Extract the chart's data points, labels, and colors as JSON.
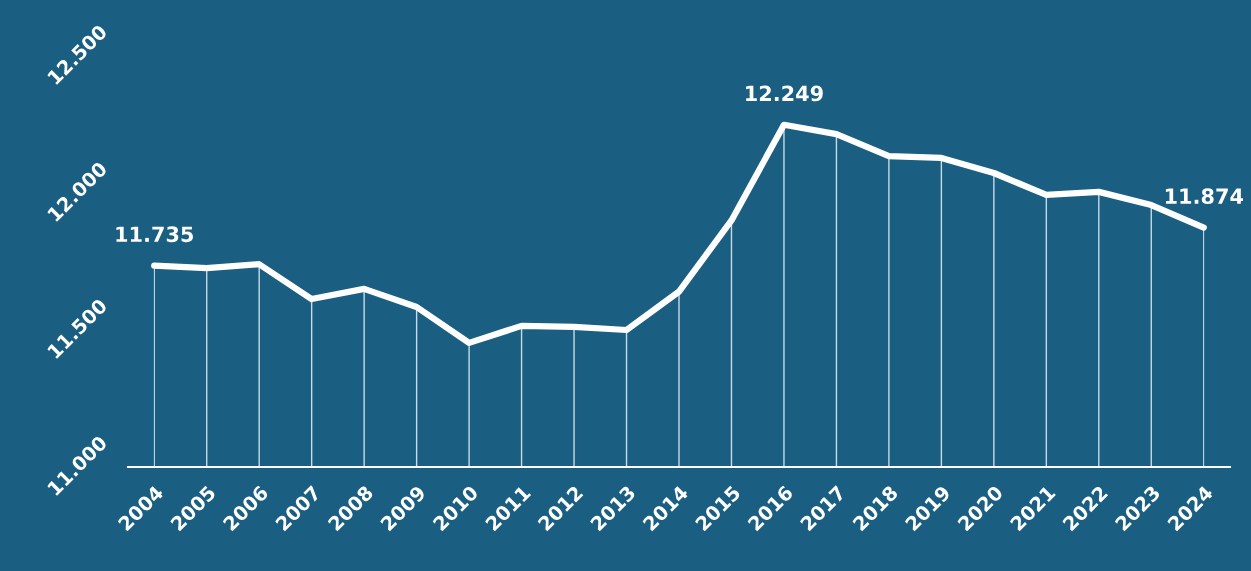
{
  "chart_data": {
    "type": "line",
    "categories": [
      "2004",
      "2005",
      "2006",
      "2007",
      "2008",
      "2009",
      "2010",
      "2011",
      "2012",
      "2013",
      "2014",
      "2015",
      "2016",
      "2017",
      "2018",
      "2019",
      "2020",
      "2021",
      "2022",
      "2023",
      "2024"
    ],
    "series": [
      {
        "color": "#ffffff",
        "values": [
          11.735,
          11.726,
          11.74,
          11.613,
          11.65,
          11.584,
          11.453,
          11.515,
          11.511,
          11.5,
          11.64,
          11.9,
          12.249,
          12.215,
          12.135,
          12.128,
          12.073,
          11.993,
          12.004,
          11.956,
          11.874
        ],
        "value_labels": [
          "11.735",
          null,
          null,
          null,
          null,
          null,
          null,
          null,
          null,
          null,
          null,
          null,
          "12.249",
          null,
          null,
          null,
          null,
          null,
          null,
          null,
          "11.874"
        ]
      }
    ],
    "ylim": [
      11,
      12.5
    ],
    "yticks": [
      {
        "value": 11,
        "label": "11.000"
      },
      {
        "value": 11.5,
        "label": "11.500"
      },
      {
        "value": 12,
        "label": "12.000"
      },
      {
        "value": 12.5,
        "label": "12.500"
      }
    ],
    "grid": "x",
    "legend": false,
    "marker": "none",
    "line_style": "solid"
  }
}
